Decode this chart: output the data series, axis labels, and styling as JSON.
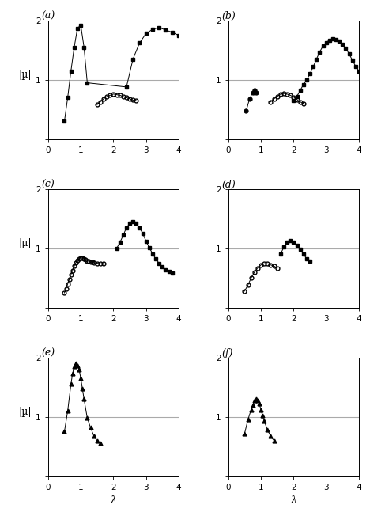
{
  "panels": [
    {
      "label": "(a)",
      "filled_squares": {
        "x": [
          0.5,
          0.6,
          0.7,
          0.8,
          0.9,
          1.0,
          1.1,
          1.2,
          2.4,
          2.6,
          2.8,
          3.0,
          3.2,
          3.4,
          3.6,
          3.8,
          4.0
        ],
        "y": [
          0.3,
          0.7,
          1.15,
          1.55,
          1.87,
          1.92,
          1.55,
          0.95,
          0.88,
          1.35,
          1.62,
          1.78,
          1.85,
          1.88,
          1.84,
          1.8,
          1.75
        ]
      },
      "open_circles": {
        "x": [
          1.5,
          1.6,
          1.7,
          1.8,
          1.9,
          2.0,
          2.1,
          2.2,
          2.3,
          2.4,
          2.5,
          2.6,
          2.7
        ],
        "y": [
          0.58,
          0.63,
          0.68,
          0.72,
          0.74,
          0.76,
          0.75,
          0.74,
          0.72,
          0.7,
          0.68,
          0.66,
          0.65
        ]
      }
    },
    {
      "label": "(b)",
      "filled_squares": {
        "x": [
          2.0,
          2.1,
          2.2,
          2.3,
          2.4,
          2.5,
          2.6,
          2.7,
          2.8,
          2.9,
          3.0,
          3.1,
          3.2,
          3.3,
          3.4,
          3.5,
          3.6,
          3.7,
          3.8,
          3.9,
          4.0
        ],
        "y": [
          0.65,
          0.72,
          0.82,
          0.92,
          1.0,
          1.1,
          1.22,
          1.35,
          1.47,
          1.57,
          1.63,
          1.67,
          1.69,
          1.68,
          1.65,
          1.6,
          1.53,
          1.44,
          1.33,
          1.23,
          1.15
        ]
      },
      "open_circles": {
        "x": [
          1.3,
          1.4,
          1.5,
          1.6,
          1.7,
          1.8,
          1.9,
          2.0,
          2.1,
          2.2,
          2.3
        ],
        "y": [
          0.63,
          0.68,
          0.72,
          0.76,
          0.77,
          0.76,
          0.74,
          0.71,
          0.67,
          0.63,
          0.6
        ]
      },
      "filled_circles_small": {
        "x": [
          0.55,
          0.65,
          0.75,
          0.8,
          0.85
        ],
        "y": [
          0.48,
          0.68,
          0.79,
          0.82,
          0.78
        ]
      }
    },
    {
      "label": "(c)",
      "filled_squares": {
        "x": [
          2.1,
          2.2,
          2.3,
          2.4,
          2.5,
          2.6,
          2.7,
          2.8,
          2.9,
          3.0,
          3.1,
          3.2,
          3.3,
          3.4,
          3.5,
          3.6,
          3.7,
          3.8
        ],
        "y": [
          1.0,
          1.1,
          1.22,
          1.35,
          1.42,
          1.45,
          1.42,
          1.35,
          1.25,
          1.12,
          1.01,
          0.91,
          0.82,
          0.75,
          0.69,
          0.64,
          0.61,
          0.58
        ]
      },
      "open_circles": {
        "x": [
          0.5,
          0.55,
          0.6,
          0.65,
          0.7,
          0.75,
          0.8,
          0.85,
          0.9,
          0.95,
          1.0,
          1.05,
          1.1,
          1.15,
          1.2,
          1.25,
          1.3,
          1.35,
          1.4,
          1.5,
          1.6,
          1.7
        ],
        "y": [
          0.25,
          0.32,
          0.4,
          0.48,
          0.56,
          0.63,
          0.7,
          0.76,
          0.8,
          0.83,
          0.84,
          0.84,
          0.83,
          0.81,
          0.79,
          0.78,
          0.77,
          0.77,
          0.76,
          0.75,
          0.74,
          0.74
        ]
      }
    },
    {
      "label": "(d)",
      "filled_squares": {
        "x": [
          1.6,
          1.7,
          1.8,
          1.9,
          2.0,
          2.1,
          2.2,
          2.3,
          2.4,
          2.5
        ],
        "y": [
          0.9,
          1.02,
          1.1,
          1.13,
          1.1,
          1.05,
          0.98,
          0.9,
          0.83,
          0.78
        ]
      },
      "open_circles": {
        "x": [
          0.5,
          0.6,
          0.7,
          0.8,
          0.9,
          1.0,
          1.1,
          1.2,
          1.3,
          1.4,
          1.5
        ],
        "y": [
          0.28,
          0.38,
          0.5,
          0.6,
          0.67,
          0.72,
          0.74,
          0.74,
          0.72,
          0.7,
          0.67
        ]
      }
    },
    {
      "label": "(e)",
      "filled_triangles": {
        "x": [
          0.5,
          0.6,
          0.7,
          0.75,
          0.8,
          0.85,
          0.9,
          0.95,
          1.0,
          1.05,
          1.1,
          1.2,
          1.3,
          1.4,
          1.5,
          1.6
        ],
        "y": [
          0.75,
          1.1,
          1.55,
          1.73,
          1.85,
          1.91,
          1.87,
          1.8,
          1.65,
          1.48,
          1.3,
          0.98,
          0.82,
          0.68,
          0.6,
          0.56
        ]
      }
    },
    {
      "label": "(f)",
      "filled_triangles": {
        "x": [
          0.5,
          0.6,
          0.7,
          0.75,
          0.8,
          0.85,
          0.9,
          0.95,
          1.0,
          1.05,
          1.1,
          1.2,
          1.3,
          1.4
        ],
        "y": [
          0.72,
          0.95,
          1.12,
          1.2,
          1.27,
          1.3,
          1.28,
          1.22,
          1.12,
          1.02,
          0.93,
          0.78,
          0.67,
          0.6
        ]
      }
    }
  ],
  "xlim": [
    0,
    4
  ],
  "ylim": [
    0,
    2
  ],
  "yticks": [
    0,
    1,
    2
  ],
  "ytick_labels": [
    "",
    "1",
    "2"
  ],
  "xticks": [
    0,
    1,
    2,
    3,
    4
  ],
  "xtick_labels": [
    "0",
    "1",
    "2",
    "3",
    "4"
  ],
  "hline_y": 1.0,
  "ylabel": "|µ|",
  "xlabel": "λ",
  "marker_filled_square": "s",
  "marker_open_circle": "o",
  "marker_filled_triangle": "^",
  "markersize": 3.5,
  "linewidth": 0.7,
  "color": "black",
  "hline_color": "#aaaaaa",
  "background_color": "white"
}
